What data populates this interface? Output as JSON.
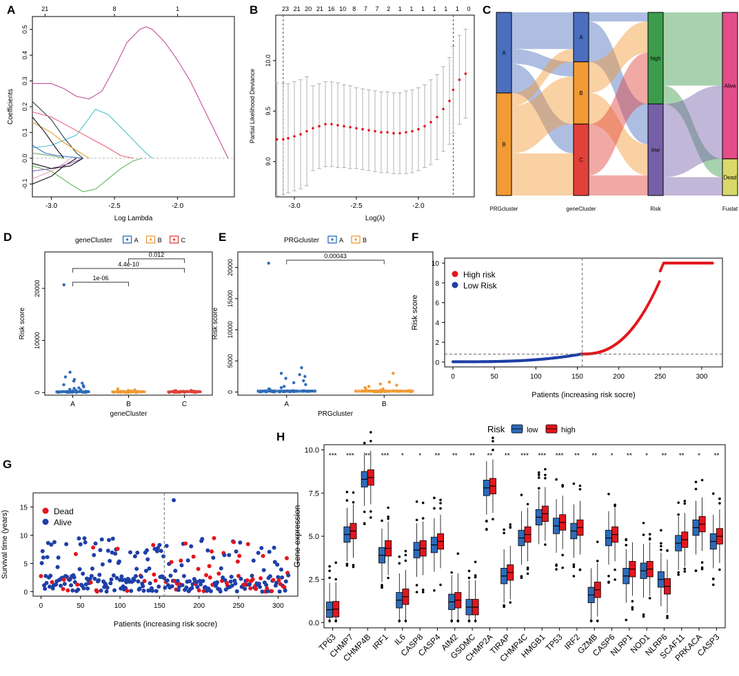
{
  "chart_data": [
    {
      "id": "A",
      "type": "line",
      "letter": "A",
      "title": "",
      "xlabel": "Log Lambda",
      "ylabel": "Coefficients",
      "xlim": [
        -3.15,
        -1.55
      ],
      "ylim": [
        -0.15,
        0.55
      ],
      "xticks": [
        -3.0,
        -2.5,
        -2.0
      ],
      "yticks": [
        -0.1,
        0.0,
        0.1,
        0.2,
        0.3,
        0.4,
        0.5
      ],
      "top_ticks": [
        {
          "x": -3.05,
          "label": "21"
        },
        {
          "x": -2.5,
          "label": "8"
        },
        {
          "x": -2.0,
          "label": "1"
        }
      ],
      "series": [
        {
          "name": "path1",
          "color": "#c0509a",
          "x": [
            -3.15,
            -3.0,
            -2.9,
            -2.8,
            -2.7,
            -2.6,
            -2.5,
            -2.4,
            -2.3,
            -2.25,
            -2.2,
            -2.1,
            -2.0,
            -1.9,
            -1.8,
            -1.7,
            -1.6
          ],
          "y": [
            0.29,
            0.29,
            0.27,
            0.24,
            0.23,
            0.26,
            0.35,
            0.45,
            0.5,
            0.51,
            0.5,
            0.45,
            0.38,
            0.3,
            0.2,
            0.1,
            0.0
          ]
        },
        {
          "name": "path2",
          "color": "#4fc0c8",
          "x": [
            -3.15,
            -3.0,
            -2.8,
            -2.65,
            -2.55,
            -2.45,
            -2.35,
            -2.25,
            -2.2
          ],
          "y": [
            0.04,
            0.05,
            0.09,
            0.19,
            0.17,
            0.12,
            0.07,
            0.02,
            0.0
          ]
        },
        {
          "name": "path3",
          "color": "#2c3a4c",
          "x": [
            -3.15,
            -3.0,
            -2.9,
            -2.8,
            -2.75
          ],
          "y": [
            0.22,
            0.15,
            0.08,
            0.02,
            0.0
          ]
        },
        {
          "name": "path4",
          "color": "#f0607a",
          "x": [
            -3.15,
            -3.0,
            -2.85,
            -2.7,
            -2.55,
            -2.45,
            -2.35
          ],
          "y": [
            0.18,
            0.16,
            0.12,
            0.08,
            0.04,
            0.01,
            0.0
          ]
        },
        {
          "name": "path5",
          "color": "#5ab85a",
          "x": [
            -3.15,
            -3.0,
            -2.85,
            -2.75,
            -2.65,
            -2.55,
            -2.45,
            -2.35,
            -2.28
          ],
          "y": [
            -0.03,
            -0.05,
            -0.1,
            -0.13,
            -0.12,
            -0.08,
            -0.04,
            -0.01,
            0.0
          ]
        },
        {
          "name": "path6",
          "color": "#111111",
          "x": [
            -3.15,
            -3.0,
            -2.9,
            -2.8
          ],
          "y": [
            -0.1,
            -0.07,
            -0.03,
            0.0
          ]
        },
        {
          "name": "path7",
          "color": "#3a70c0",
          "x": [
            -3.15,
            -3.05,
            -2.95,
            -2.85,
            -2.75
          ],
          "y": [
            0.05,
            0.02,
            0.01,
            0.005,
            0.0
          ]
        },
        {
          "name": "path8",
          "color": "#e0a030",
          "x": [
            -3.15,
            -3.0,
            -2.9,
            -2.8,
            -2.7
          ],
          "y": [
            0.14,
            0.1,
            0.06,
            0.03,
            0.0
          ]
        },
        {
          "name": "path9",
          "color": "#111111",
          "x": [
            -3.15,
            -3.05,
            -2.95,
            -2.9
          ],
          "y": [
            0.16,
            0.1,
            0.03,
            0.0
          ]
        },
        {
          "name": "path10",
          "color": "#9060c0",
          "x": [
            -3.15,
            -3.0,
            -2.85,
            -2.75
          ],
          "y": [
            -0.05,
            -0.04,
            -0.02,
            0.0
          ]
        },
        {
          "name": "path11",
          "color": "#f0a0c0",
          "x": [
            -3.15,
            -3.0,
            -2.9,
            -2.85
          ],
          "y": [
            -0.08,
            -0.05,
            -0.02,
            0.0
          ]
        },
        {
          "name": "path12",
          "color": "#60a060",
          "x": [
            -3.15,
            -3.0,
            -2.9
          ],
          "y": [
            0.02,
            0.01,
            0.0
          ]
        },
        {
          "name": "path13",
          "color": "#111111",
          "x": [
            -3.15,
            -3.0,
            -2.85,
            -2.75
          ],
          "y": [
            -0.02,
            -0.04,
            -0.03,
            0.0
          ]
        }
      ]
    },
    {
      "id": "B",
      "type": "errorbar",
      "letter": "B",
      "title": "",
      "xlabel": "Log(λ)",
      "ylabel": "Partial Likelihood Deviance",
      "xlim": [
        -3.15,
        -1.55
      ],
      "ylim": [
        8.65,
        10.45
      ],
      "xticks": [
        -3.0,
        -2.5,
        -2.0
      ],
      "yticks": [
        9.0,
        9.5,
        10.0
      ],
      "top_labels": [
        "23",
        "21",
        "20",
        "21",
        "16",
        "10",
        "8",
        "7",
        "7",
        "2",
        "1",
        "1",
        "1",
        "1",
        "1",
        "1",
        "0"
      ],
      "vlines": [
        -3.09,
        -1.72
      ],
      "points": {
        "x": [
          -3.14,
          -3.09,
          -3.05,
          -3.0,
          -2.95,
          -2.9,
          -2.85,
          -2.8,
          -2.75,
          -2.7,
          -2.65,
          -2.6,
          -2.55,
          -2.5,
          -2.45,
          -2.4,
          -2.35,
          -2.3,
          -2.25,
          -2.2,
          -2.15,
          -2.1,
          -2.05,
          -2.0,
          -1.95,
          -1.9,
          -1.85,
          -1.8,
          -1.75,
          -1.72,
          -1.67,
          -1.62
        ],
        "y": [
          9.22,
          9.22,
          9.23,
          9.25,
          9.27,
          9.3,
          9.33,
          9.35,
          9.37,
          9.37,
          9.36,
          9.35,
          9.34,
          9.33,
          9.32,
          9.31,
          9.3,
          9.29,
          9.29,
          9.28,
          9.28,
          9.29,
          9.3,
          9.32,
          9.35,
          9.39,
          9.44,
          9.52,
          9.6,
          9.71,
          9.81,
          9.87
        ],
        "err": [
          0.56,
          0.55,
          0.54,
          0.54,
          0.54,
          0.54,
          0.42,
          0.42,
          0.42,
          0.42,
          0.42,
          0.41,
          0.41,
          0.4,
          0.4,
          0.4,
          0.4,
          0.4,
          0.4,
          0.4,
          0.4,
          0.41,
          0.41,
          0.41,
          0.41,
          0.42,
          0.42,
          0.42,
          0.43,
          0.43,
          0.44,
          0.44
        ]
      }
    },
    {
      "id": "C",
      "type": "sankey",
      "letter": "C",
      "axes": [
        "PRGcluster",
        "geneCluster",
        "Risk",
        "Fustat"
      ],
      "nodes": [
        {
          "axis": 0,
          "label": "A",
          "share": 0.44,
          "color": "#4a6fbf"
        },
        {
          "axis": 0,
          "label": "B",
          "share": 0.56,
          "color": "#f29a33"
        },
        {
          "axis": 1,
          "label": "A",
          "share": 0.27,
          "color": "#4a6fbf"
        },
        {
          "axis": 1,
          "label": "B",
          "share": 0.34,
          "color": "#f29a33"
        },
        {
          "axis": 1,
          "label": "C",
          "share": 0.39,
          "color": "#e0413a"
        },
        {
          "axis": 2,
          "label": "high",
          "share": 0.5,
          "color": "#3d9c4c"
        },
        {
          "axis": 2,
          "label": "low",
          "share": 0.5,
          "color": "#7660a8"
        },
        {
          "axis": 3,
          "label": "Alive",
          "share": 0.8,
          "color": "#e24d8a"
        },
        {
          "axis": 3,
          "label": "Dead",
          "share": 0.2,
          "color": "#d9d86a"
        }
      ]
    },
    {
      "id": "D",
      "type": "box",
      "letter": "D",
      "legend_title": "geneCluster",
      "xlabel": "geneCluster",
      "ylabel": "Risk score",
      "ylim": [
        -500,
        27000
      ],
      "yticks": [
        0,
        10000,
        20000
      ],
      "categories": [
        "A",
        "B",
        "C"
      ],
      "colors": [
        "#2e6bb8",
        "#f29a33",
        "#e0413a"
      ],
      "outliers": [
        [
          20700,
          3900,
          3000,
          2500,
          2200,
          1800,
          1500,
          1300,
          1100,
          900,
          800,
          600,
          500,
          400,
          300
        ],
        [
          700,
          500,
          400,
          300,
          250
        ],
        [
          400,
          350,
          300,
          250,
          200
        ]
      ],
      "brackets": [
        {
          "from": 0,
          "to": 1,
          "label": "1e-06"
        },
        {
          "from": 0,
          "to": 2,
          "label": "4.4e-10"
        },
        {
          "from": 1,
          "to": 2,
          "label": "0.012"
        }
      ]
    },
    {
      "id": "E",
      "type": "box",
      "letter": "E",
      "legend_title": "PRGcluster",
      "xlabel": "PRGcluster",
      "ylabel": "Risk score",
      "ylim": [
        -500,
        22500
      ],
      "yticks": [
        0,
        5000,
        10000,
        15000,
        20000
      ],
      "categories": [
        "A",
        "B"
      ],
      "colors": [
        "#2e6bb8",
        "#f29a33"
      ],
      "outliers": [
        [
          20700,
          3900,
          3000,
          2800,
          2500,
          2200,
          1800,
          1500,
          1200,
          900,
          700,
          500,
          400
        ],
        [
          3000,
          1600,
          1300,
          1100,
          900,
          700,
          500,
          400,
          300
        ]
      ],
      "brackets": [
        {
          "from": 0,
          "to": 1,
          "label": "0.00043"
        }
      ]
    },
    {
      "id": "F",
      "type": "scatter",
      "letter": "F",
      "xlabel": "Patients (increasing risk socre)",
      "ylabel": "Risk score",
      "xlim": [
        -10,
        325
      ],
      "ylim": [
        -0.5,
        10.5
      ],
      "xticks": [
        0,
        50,
        100,
        150,
        200,
        250,
        300
      ],
      "yticks": [
        0,
        2,
        4,
        6,
        8,
        10
      ],
      "n": 314,
      "cutoff": 156,
      "cutoff_score": 0.8,
      "cap": 10,
      "legend": [
        {
          "label": "High risk",
          "color": "#e3161d"
        },
        {
          "label": "Low Risk",
          "color": "#1e3fa8"
        }
      ]
    },
    {
      "id": "G",
      "type": "scatter",
      "letter": "G",
      "xlabel": "Patients (increasing risk socre)",
      "ylabel": "Survival time (years)",
      "xlim": [
        -10,
        325
      ],
      "ylim": [
        -0.8,
        17.5
      ],
      "xticks": [
        0,
        50,
        100,
        150,
        200,
        250,
        300
      ],
      "yticks": [
        0,
        5,
        10,
        15
      ],
      "n": 314,
      "cutoff": 156,
      "legend": [
        {
          "label": "Dead",
          "color": "#e3161d"
        },
        {
          "label": "Alive",
          "color": "#1e3fa8"
        }
      ]
    },
    {
      "id": "H",
      "type": "box",
      "letter": "H",
      "legend_title": "Risk",
      "legend_items": [
        {
          "label": "low",
          "color": "#2e6bb8"
        },
        {
          "label": "high",
          "color": "#e3161d"
        }
      ],
      "xlabel": "",
      "ylabel": "Gene expression",
      "ylim": [
        -0.3,
        10.3
      ],
      "yticks": [
        0.0,
        2.5,
        5.0,
        7.5,
        10.0
      ],
      "categories": [
        "TP63",
        "CHMP7",
        "CHMP4B",
        "IRF1",
        "IL6",
        "CASP8",
        "CASP4",
        "AIM2",
        "GSDMC",
        "CHMP2A",
        "TIRAP",
        "CHMP4C",
        "HMGB1",
        "TP53",
        "IRF2",
        "GZMB",
        "CASP6",
        "NLRP1",
        "NOD1",
        "NLRP6",
        "SCAF11",
        "PRKACA",
        "CASP3"
      ],
      "significance": [
        "***",
        "***",
        "**",
        "***",
        "*",
        "*",
        "**",
        "**",
        "**",
        "**",
        "**",
        "***",
        "***",
        "***",
        "**",
        "**",
        "*",
        "**",
        "*",
        "**",
        "**",
        "*",
        "**"
      ],
      "low_median": [
        0.75,
        5.1,
        8.3,
        3.9,
        1.3,
        4.2,
        4.5,
        1.2,
        0.9,
        7.8,
        2.7,
        4.9,
        6.1,
        5.6,
        5.3,
        1.6,
        4.9,
        2.7,
        3.0,
        2.5,
        4.6,
        5.5,
        4.7
      ],
      "high_median": [
        0.78,
        5.3,
        8.4,
        4.3,
        1.5,
        4.3,
        4.7,
        1.3,
        0.9,
        7.9,
        2.9,
        5.1,
        6.3,
        5.8,
        5.5,
        1.9,
        5.1,
        3.1,
        3.1,
        2.1,
        4.8,
        5.7,
        5.0
      ]
    }
  ]
}
